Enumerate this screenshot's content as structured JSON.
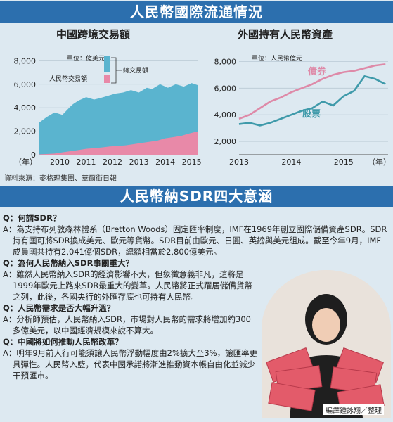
{
  "headline_top": "人民幣國際流通情況",
  "headline_bottom": "人民幣納SDR四大意涵",
  "source_note": "資料來源：麥格理集團、華爾街日報",
  "photo_credit": "編譯鍾詠翔／整理",
  "colors": {
    "banner": "#2c6fae",
    "total_trade": "#5ab4cf",
    "rmb_trade": "#e889a8",
    "bonds": "#de8aa8",
    "stocks": "#3f9aaa"
  },
  "chart_data": [
    {
      "type": "area",
      "title": "中國跨境交易額",
      "unit_label": "單位：億美元",
      "x_tick_labels": [
        "2010",
        "2011",
        "2012",
        "2013",
        "2014",
        "2015"
      ],
      "x_unit": "（年）",
      "y_tick_labels": [
        "0",
        "2,000",
        "4,000",
        "6,000",
        "8,000"
      ],
      "ylim": [
        0,
        8500
      ],
      "xlim": [
        2009.7,
        2015.75
      ],
      "grid": true,
      "series": [
        {
          "name": "總交易額",
          "x": [
            2009.7,
            2010,
            2010.3,
            2010.6,
            2010.9,
            2011,
            2011.2,
            2011.5,
            2011.8,
            2012,
            2012.3,
            2012.6,
            2012.9,
            2013.2,
            2013.5,
            2013.8,
            2014,
            2014.3,
            2014.6,
            2014.9,
            2015.2,
            2015.5,
            2015.75
          ],
          "values": [
            2700,
            3200,
            3600,
            3400,
            4100,
            4300,
            4600,
            4900,
            4700,
            4800,
            5000,
            5200,
            5300,
            5500,
            5300,
            5700,
            5600,
            6000,
            5700,
            6000,
            5800,
            6100,
            5900
          ]
        },
        {
          "name": "人民幣交易額",
          "x": [
            2009.7,
            2010,
            2010.3,
            2010.6,
            2010.9,
            2011.2,
            2011.5,
            2011.8,
            2012.1,
            2012.4,
            2012.7,
            2013,
            2013.3,
            2013.6,
            2013.9,
            2014.2,
            2014.5,
            2014.8,
            2015.1,
            2015.4,
            2015.75
          ],
          "values": [
            30,
            60,
            100,
            200,
            300,
            400,
            500,
            560,
            620,
            700,
            750,
            800,
            900,
            1000,
            1100,
            1200,
            1400,
            1500,
            1600,
            1800,
            2000
          ]
        }
      ]
    },
    {
      "type": "line",
      "title": "外國持有人民幣資產",
      "unit_label": "單位：人民幣億元",
      "x_tick_labels": [
        "2013",
        "2014",
        "2015"
      ],
      "x_unit": "（年）",
      "y_tick_labels": [
        "2,000",
        "4,000",
        "6,000",
        "8,000"
      ],
      "ylim": [
        1000,
        8500
      ],
      "xlim": [
        2013,
        2015.85
      ],
      "grid": true,
      "series": [
        {
          "name": "債券",
          "x": [
            2013,
            2013.2,
            2013.4,
            2013.6,
            2013.8,
            2014,
            2014.2,
            2014.4,
            2014.6,
            2014.8,
            2015,
            2015.2,
            2015.4,
            2015.6,
            2015.8
          ],
          "values": [
            3700,
            4000,
            4500,
            5000,
            5300,
            5700,
            6000,
            6300,
            6700,
            7000,
            7200,
            7300,
            7500,
            7700,
            7800
          ]
        },
        {
          "name": "股票",
          "x": [
            2013,
            2013.2,
            2013.4,
            2013.6,
            2013.8,
            2014,
            2014.2,
            2014.4,
            2014.6,
            2014.8,
            2015,
            2015.2,
            2015.4,
            2015.6,
            2015.8
          ],
          "values": [
            3300,
            3400,
            3200,
            3400,
            3700,
            4000,
            4300,
            4500,
            5000,
            4700,
            5400,
            5800,
            6900,
            6700,
            6300
          ]
        }
      ]
    }
  ],
  "qa": [
    {
      "q": "Q：何謂SDR？",
      "a": "A：為支持布列敦森林體系（Bretton Woods）固定匯率制度，IMF在1969年創立國際儲備資產SDR。SDR持有國可將SDR換成美元、歐元等貨幣。SDR目前由歐元、日圓、英鎊與美元組成。截至今年9月，IMF成員國共持有2,041億個SDR，總額相當於2,800億美元。"
    },
    {
      "q": "Q：為何人民幣納入SDR事關重大？",
      "a": "A：雖然人民幣納入SDR的經濟影響不大，但象徵意義非凡，這將是1999年歐元上路來SDR最重大的變革。人民幣將正式躍居儲備貨幣之列，此後，各國央行的外匯存底也可持有人民幣。"
    },
    {
      "q": "Q：人民幣需求是否大幅升溫？",
      "a": "A：分析師預估，人民幣納入SDR，市場對人民幣的需求將增加約300多億美元，以中國經濟規模來說不算大。"
    },
    {
      "q": "Q：中國將如何推動人民幣改革？",
      "a": "A：明年9月前人行可能須讓人民幣浮動幅度由2%擴大至3%，讓匯率更具彈性。人民幣入籃，代表中國承諾將漸進推動資本帳自由化並減少干預匯市。"
    }
  ]
}
